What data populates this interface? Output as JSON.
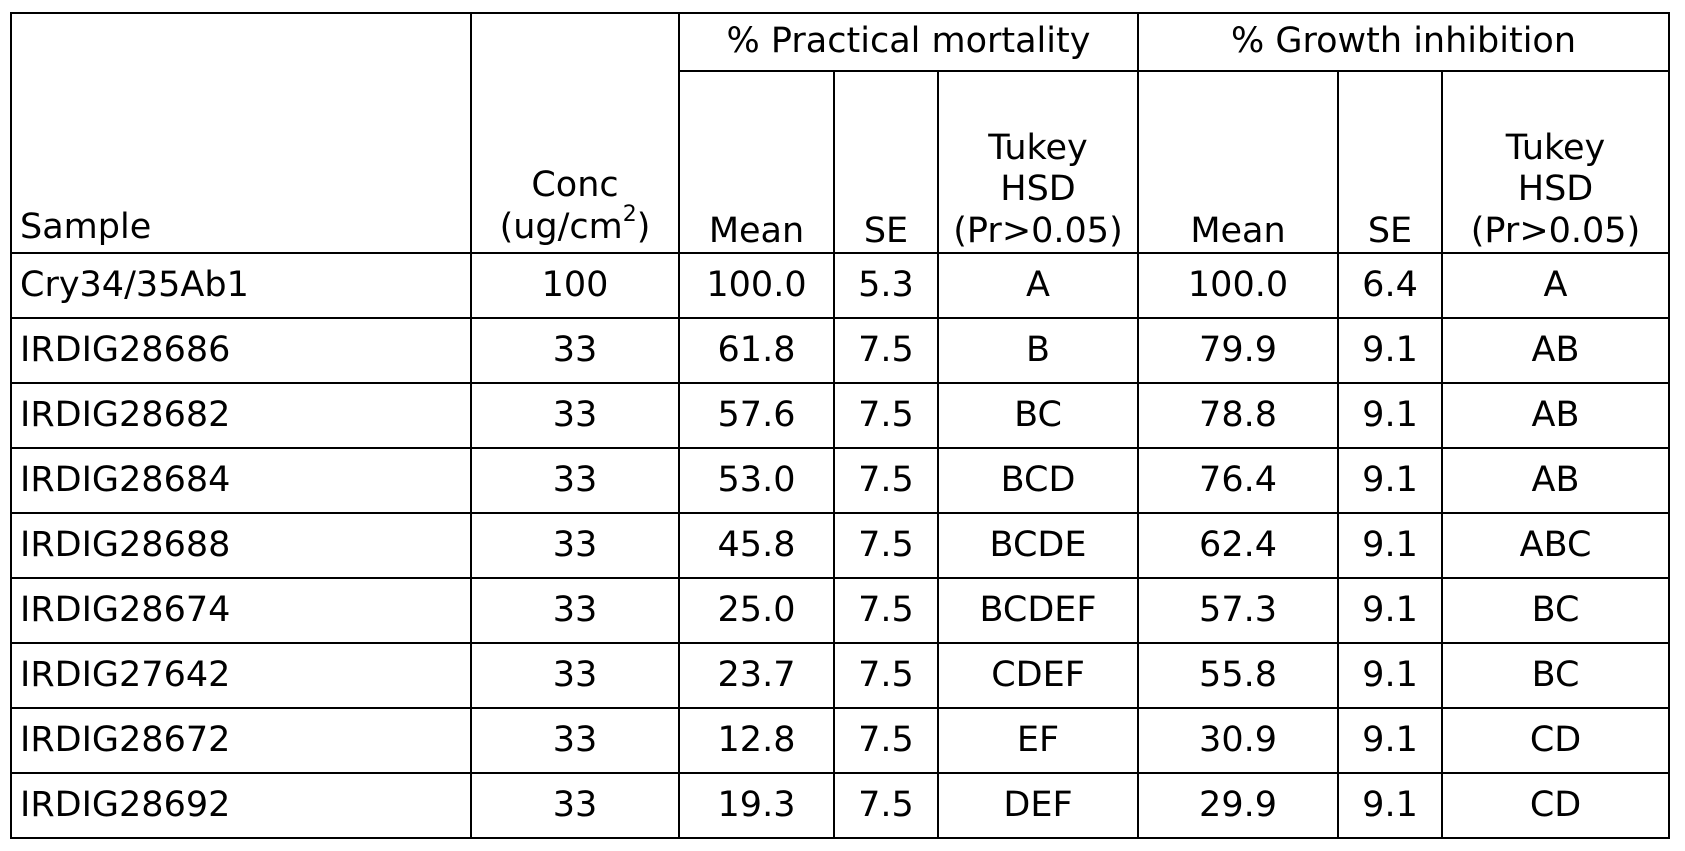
{
  "table": {
    "headers": {
      "sample": "Sample",
      "conc_line1": "Conc",
      "conc_line2_pre": "(ug/cm",
      "conc_line2_sup": "2",
      "conc_line2_post": ")",
      "group_mortality": "% Practical mortality",
      "group_growth": "% Growth inhibition",
      "mean": "Mean",
      "se": "SE",
      "tukey_line1": "Tukey",
      "tukey_line2": "HSD",
      "tukey_line3": "(Pr>0.05)"
    },
    "rows": [
      {
        "sample": "Cry34/35Ab1",
        "conc": "100",
        "pm_mean": "100.0",
        "pm_se": "5.3",
        "pm_tukey": "A",
        "gi_mean": "100.0",
        "gi_se": "6.4",
        "gi_tukey": "A"
      },
      {
        "sample": "IRDIG28686",
        "conc": "33",
        "pm_mean": "61.8",
        "pm_se": "7.5",
        "pm_tukey": "B",
        "gi_mean": "79.9",
        "gi_se": "9.1",
        "gi_tukey": "AB"
      },
      {
        "sample": "IRDIG28682",
        "conc": "33",
        "pm_mean": "57.6",
        "pm_se": "7.5",
        "pm_tukey": "BC",
        "gi_mean": "78.8",
        "gi_se": "9.1",
        "gi_tukey": "AB"
      },
      {
        "sample": "IRDIG28684",
        "conc": "33",
        "pm_mean": "53.0",
        "pm_se": "7.5",
        "pm_tukey": "BCD",
        "gi_mean": "76.4",
        "gi_se": "9.1",
        "gi_tukey": "AB"
      },
      {
        "sample": "IRDIG28688",
        "conc": "33",
        "pm_mean": "45.8",
        "pm_se": "7.5",
        "pm_tukey": "BCDE",
        "gi_mean": "62.4",
        "gi_se": "9.1",
        "gi_tukey": "ABC"
      },
      {
        "sample": "IRDIG28674",
        "conc": "33",
        "pm_mean": "25.0",
        "pm_se": "7.5",
        "pm_tukey": "BCDEF",
        "gi_mean": "57.3",
        "gi_se": "9.1",
        "gi_tukey": "BC"
      },
      {
        "sample": "IRDIG27642",
        "conc": "33",
        "pm_mean": "23.7",
        "pm_se": "7.5",
        "pm_tukey": "CDEF",
        "gi_mean": "55.8",
        "gi_se": "9.1",
        "gi_tukey": "BC"
      },
      {
        "sample": "IRDIG28672",
        "conc": "33",
        "pm_mean": "12.8",
        "pm_se": "7.5",
        "pm_tukey": "EF",
        "gi_mean": "30.9",
        "gi_se": "9.1",
        "gi_tukey": "CD"
      },
      {
        "sample": "IRDIG28692",
        "conc": "33",
        "pm_mean": "19.3",
        "pm_se": "7.5",
        "pm_tukey": "DEF",
        "gi_mean": "29.9",
        "gi_se": "9.1",
        "gi_tukey": "CD"
      }
    ]
  }
}
